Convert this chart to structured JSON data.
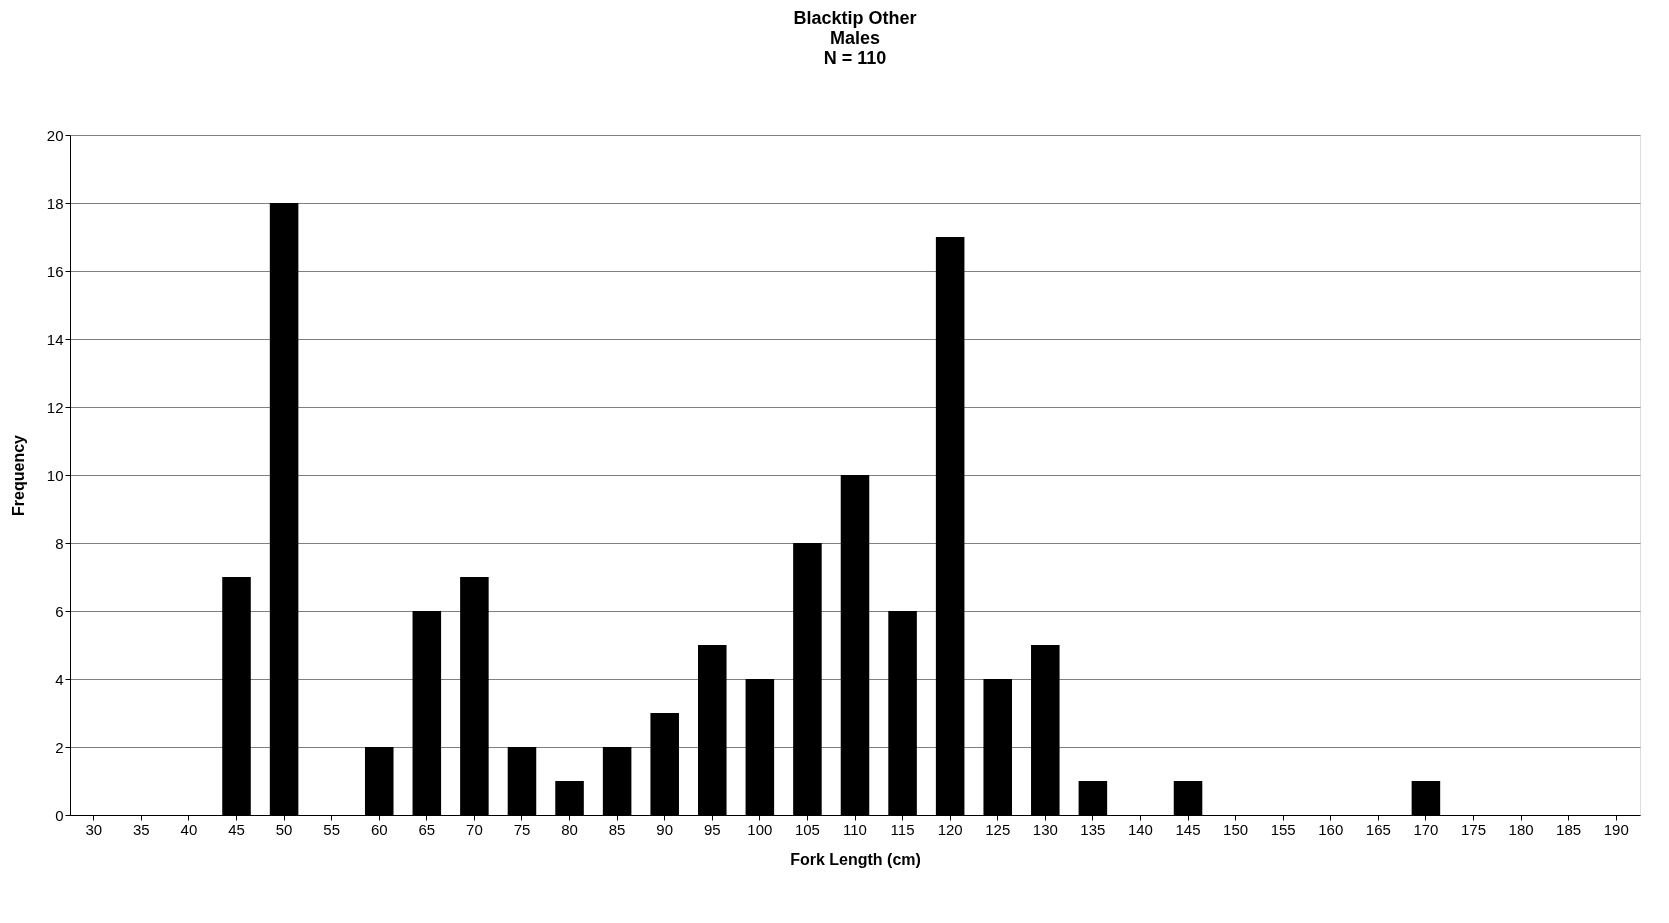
{
  "chart_data": {
    "type": "bar",
    "title": "Blacktip Other\nMales\nN = 110",
    "xlabel": "Fork Length (cm)",
    "ylabel": "Frequency",
    "categories": [
      "30",
      "35",
      "40",
      "45",
      "50",
      "55",
      "60",
      "65",
      "70",
      "75",
      "80",
      "85",
      "90",
      "95",
      "100",
      "105",
      "110",
      "115",
      "120",
      "125",
      "130",
      "135",
      "140",
      "145",
      "150",
      "155",
      "160",
      "165",
      "170",
      "175",
      "180",
      "185",
      "190"
    ],
    "values": [
      0,
      0,
      0,
      7,
      18,
      0,
      2,
      6,
      7,
      2,
      1,
      2,
      3,
      5,
      4,
      8,
      10,
      6,
      17,
      4,
      5,
      1,
      0,
      1,
      0,
      0,
      0,
      0,
      1,
      0,
      0,
      0,
      0
    ],
    "color": "#000000",
    "ylim": [
      0,
      20
    ],
    "yticks": [
      0,
      2,
      4,
      6,
      8,
      10,
      12,
      14,
      16,
      18,
      20
    ],
    "grid": "y"
  }
}
